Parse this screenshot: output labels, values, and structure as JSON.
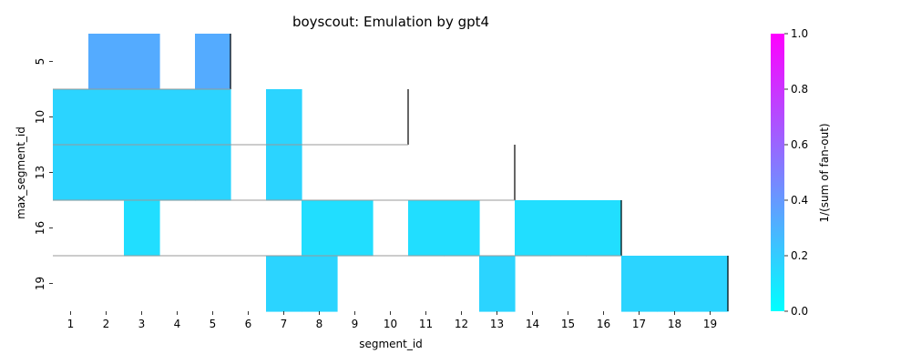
{
  "chart_data": {
    "type": "heatmap",
    "title": "boyscout: Emulation by gpt4",
    "xlabel": "segment_id",
    "ylabel": "max_segment_id",
    "x_tick_labels": [
      "1",
      "2",
      "3",
      "4",
      "5",
      "6",
      "7",
      "8",
      "9",
      "10",
      "11",
      "12",
      "13",
      "14",
      "15",
      "16",
      "17",
      "18",
      "19"
    ],
    "y_tick_labels": [
      {
        "label": "5",
        "row": 0
      },
      {
        "label": "10",
        "row": 1
      },
      {
        "label": "13",
        "row": 2
      },
      {
        "label": "16",
        "row": 3
      },
      {
        "label": "19",
        "row": 4
      }
    ],
    "colorbar": {
      "label": "1/(sum of fan-out)",
      "min": 0.0,
      "max": 1.0,
      "ticks": [
        "0.0",
        "0.2",
        "0.4",
        "0.6",
        "0.8",
        "1.0"
      ],
      "colormap": "cool",
      "colors": {
        "low": "#00ffff",
        "high": "#ff00ff"
      }
    },
    "cells": [
      {
        "row": 0,
        "x": [
          2,
          3
        ],
        "value": 0.33
      },
      {
        "row": 0,
        "x": [
          5
        ],
        "value": 0.33
      },
      {
        "row": 1,
        "x": [
          1,
          2,
          3,
          4,
          5
        ],
        "value": 0.17
      },
      {
        "row": 1,
        "x": [
          7
        ],
        "value": 0.17
      },
      {
        "row": 2,
        "x": [
          1,
          2,
          3,
          4,
          5
        ],
        "value": 0.17
      },
      {
        "row": 2,
        "x": [
          7
        ],
        "value": 0.17
      },
      {
        "row": 3,
        "x": [
          3
        ],
        "value": 0.13
      },
      {
        "row": 3,
        "x": [
          8,
          9
        ],
        "value": 0.13
      },
      {
        "row": 3,
        "x": [
          11,
          12
        ],
        "value": 0.13
      },
      {
        "row": 3,
        "x": [
          14,
          15,
          16
        ],
        "value": 0.13
      },
      {
        "row": 4,
        "x": [
          7,
          8
        ],
        "value": 0.17
      },
      {
        "row": 4,
        "x": [
          13
        ],
        "value": 0.17
      },
      {
        "row": 4,
        "x": [
          17,
          18,
          19
        ],
        "value": 0.17
      }
    ],
    "group_boundaries": [
      {
        "after_row": 0,
        "end_segment": 5
      },
      {
        "after_row": 1,
        "end_segment": 10
      },
      {
        "after_row": 2,
        "end_segment": 13
      },
      {
        "after_row": 3,
        "end_segment": 16
      },
      {
        "after_row": 4,
        "end_segment": 19
      }
    ]
  }
}
